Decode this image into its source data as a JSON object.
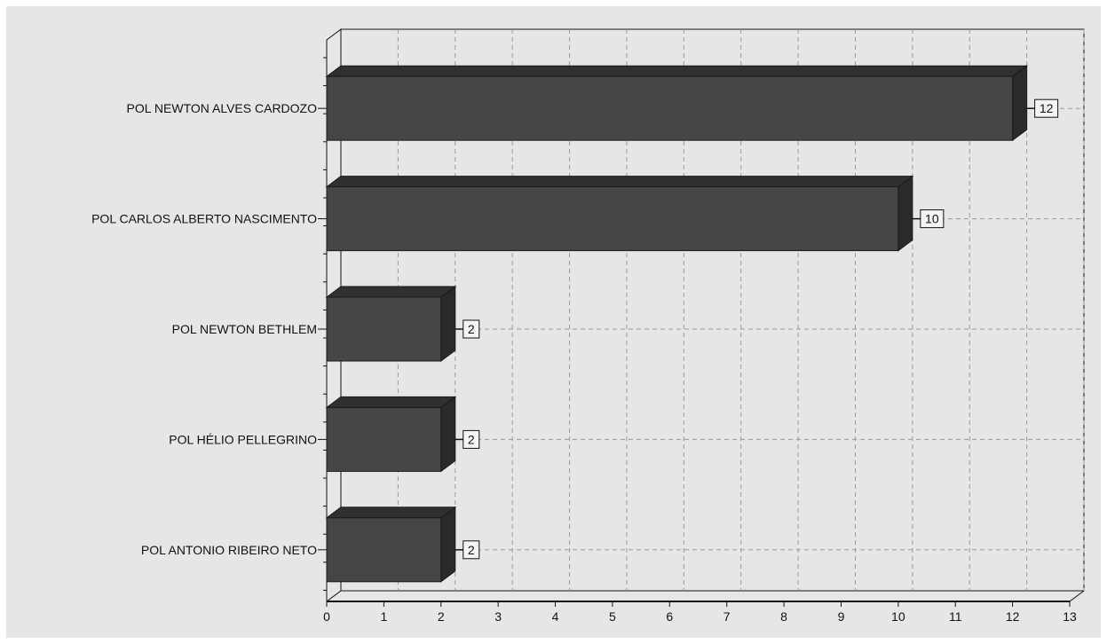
{
  "chart_data": {
    "type": "bar",
    "orientation": "horizontal",
    "style": "3d",
    "categories": [
      "POL NEWTON ALVES CARDOZO",
      "POL CARLOS ALBERTO NASCIMENTO",
      "POL NEWTON BETHLEM",
      "POL HÉLIO PELLEGRINO",
      "POL ANTONIO RIBEIRO NETO"
    ],
    "values": [
      12,
      10,
      2,
      2,
      2
    ],
    "data_labels": [
      "12",
      "10",
      "2",
      "2",
      "2"
    ],
    "xlim": [
      0,
      13
    ],
    "x_ticks": [
      "0",
      "1",
      "2",
      "3",
      "4",
      "5",
      "6",
      "7",
      "8",
      "9",
      "10",
      "11",
      "12",
      "13"
    ],
    "grid": true,
    "grid_style": "dashed",
    "legend": "none",
    "colors": {
      "plot_background": "#e6e6e6",
      "bar_front": "#464646",
      "bar_top": "#303030",
      "bar_side": "#2a2a2a",
      "grid": "#9a9a9a",
      "axis": "#111111",
      "label_box_fill": "#f4f4f4"
    }
  }
}
